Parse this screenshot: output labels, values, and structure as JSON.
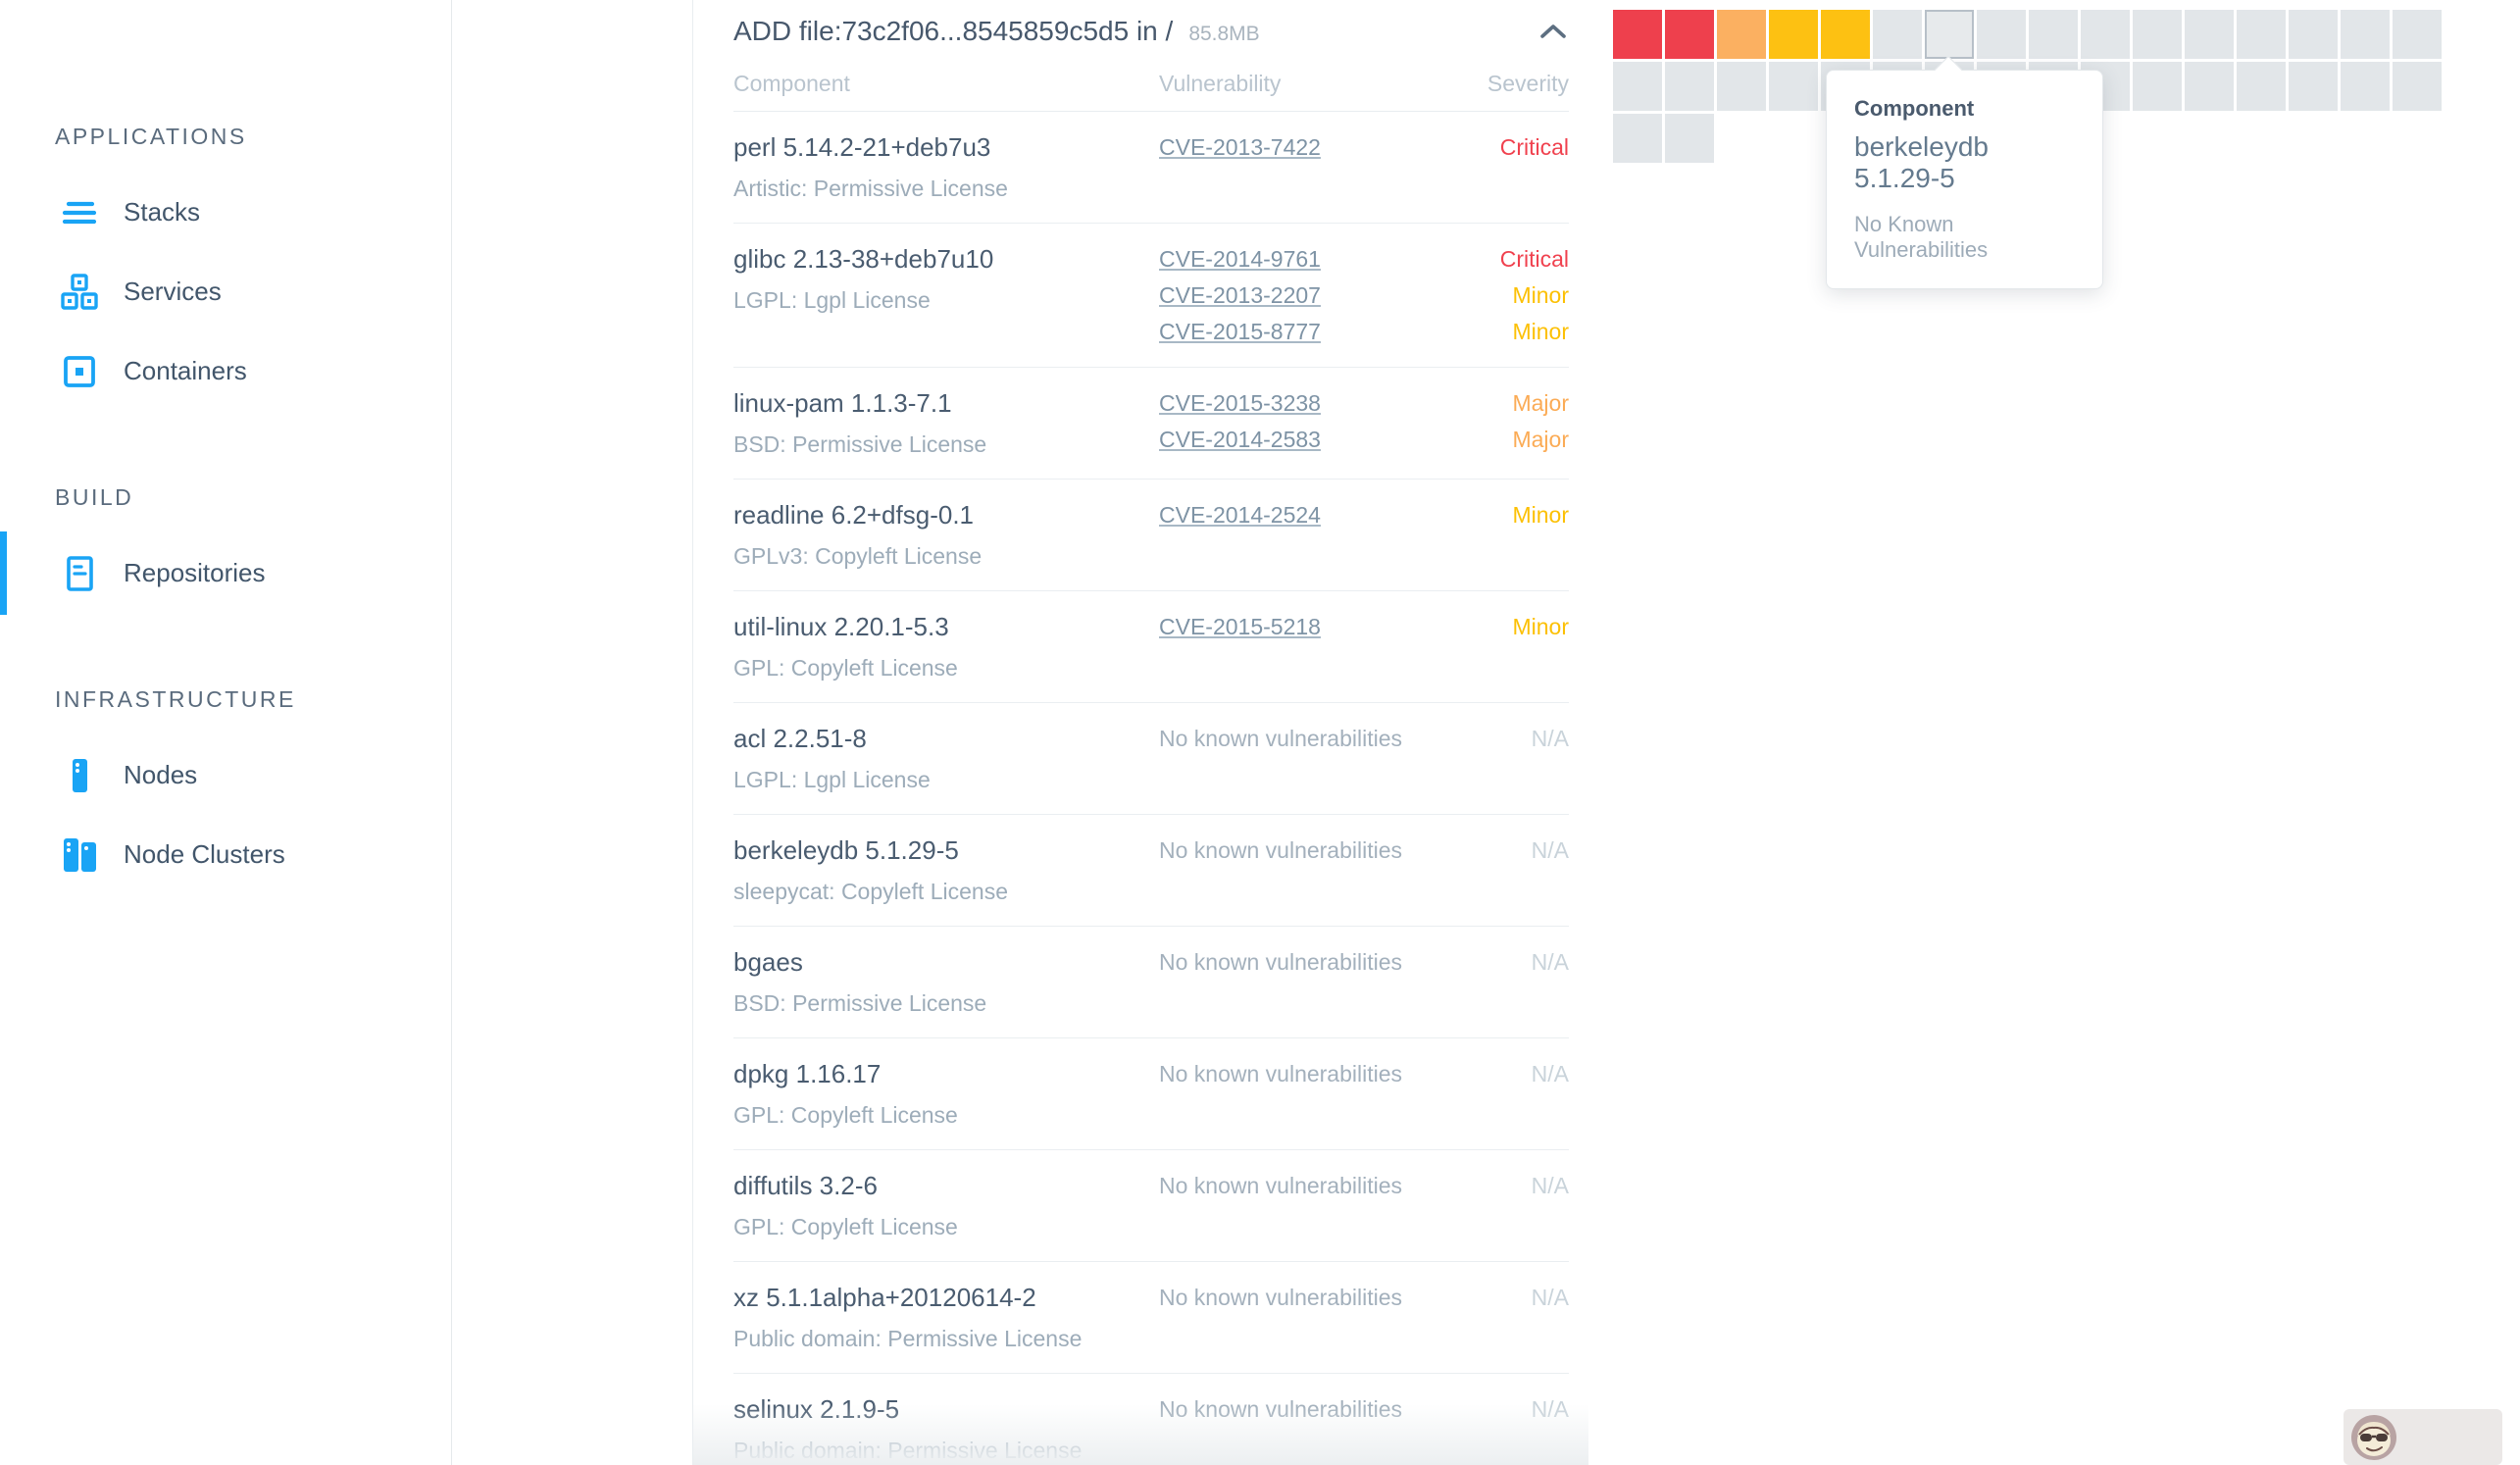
{
  "sidebar": {
    "sections": [
      {
        "label": "APPLICATIONS",
        "items": [
          {
            "label": "Stacks",
            "icon": "stacks-icon",
            "active": false
          },
          {
            "label": "Services",
            "icon": "services-icon",
            "active": false
          },
          {
            "label": "Containers",
            "icon": "containers-icon",
            "active": false
          }
        ]
      },
      {
        "label": "BUILD",
        "items": [
          {
            "label": "Repositories",
            "icon": "repositories-icon",
            "active": true
          }
        ]
      },
      {
        "label": "INFRASTRUCTURE",
        "items": [
          {
            "label": "Nodes",
            "icon": "nodes-icon",
            "active": false
          },
          {
            "label": "Node Clusters",
            "icon": "node-clusters-icon",
            "active": false
          }
        ]
      }
    ]
  },
  "panel": {
    "title": "ADD file:73c2f06...8545859c5d5 in /",
    "size": "85.8MB",
    "collapse_icon": "chevron-up-icon"
  },
  "table": {
    "columns": [
      "Component",
      "Vulnerability",
      "Severity"
    ],
    "no_vuln_text": "No known vulnerabilities",
    "na_text": "N/A",
    "rows": [
      {
        "component": "perl 5.14.2-21+deb7u3",
        "license": "Artistic: Permissive License",
        "vulns": [
          {
            "cve": "CVE-2013-7422",
            "severity": "Critical"
          }
        ]
      },
      {
        "component": "glibc 2.13-38+deb7u10",
        "license": "LGPL: Lgpl License",
        "vulns": [
          {
            "cve": "CVE-2014-9761",
            "severity": "Critical"
          },
          {
            "cve": "CVE-2013-2207",
            "severity": "Minor"
          },
          {
            "cve": "CVE-2015-8777",
            "severity": "Minor"
          }
        ]
      },
      {
        "component": "linux-pam 1.1.3-7.1",
        "license": "BSD: Permissive License",
        "vulns": [
          {
            "cve": "CVE-2015-3238",
            "severity": "Major"
          },
          {
            "cve": "CVE-2014-2583",
            "severity": "Major"
          }
        ]
      },
      {
        "component": "readline 6.2+dfsg-0.1",
        "license": "GPLv3: Copyleft License",
        "vulns": [
          {
            "cve": "CVE-2014-2524",
            "severity": "Minor"
          }
        ]
      },
      {
        "component": "util-linux 2.20.1-5.3",
        "license": "GPL: Copyleft License",
        "vulns": [
          {
            "cve": "CVE-2015-5218",
            "severity": "Minor"
          }
        ]
      },
      {
        "component": "acl 2.2.51-8",
        "license": "LGPL: Lgpl License",
        "vulns": []
      },
      {
        "component": "berkeleydb 5.1.29-5",
        "license": "sleepycat: Copyleft License",
        "vulns": []
      },
      {
        "component": "bgaes",
        "license": "BSD: Permissive License",
        "vulns": []
      },
      {
        "component": "dpkg 1.16.17",
        "license": "GPL: Copyleft License",
        "vulns": []
      },
      {
        "component": "diffutils 3.2-6",
        "license": "GPL: Copyleft License",
        "vulns": []
      },
      {
        "component": "xz 5.1.1alpha+20120614-2",
        "license": "Public domain: Permissive License",
        "vulns": []
      },
      {
        "component": "selinux 2.1.9-5",
        "license": "Public domain: Permissive License",
        "vulns": []
      }
    ]
  },
  "severity_colors": {
    "Critical": "#f0414e",
    "Major": "#fbab55",
    "Minor": "#fcc004",
    "N/A": "#c9d3da"
  },
  "heatmap": {
    "cell_colors": {
      "critical": "#ee404d",
      "major": "#fbb061",
      "minor": "#fdc112",
      "none": "#e2e6e9",
      "hovered": "#e7eaec"
    },
    "rows": [
      [
        "critical",
        "critical",
        "major",
        "minor",
        "minor",
        "none",
        "none",
        "none",
        "none",
        "none",
        "none",
        "none",
        "none",
        "none",
        "none",
        "none"
      ],
      [
        "none",
        "none",
        "none",
        "none",
        "none",
        "none",
        "none",
        "none",
        "none",
        "none",
        "none",
        "none",
        "none",
        "none",
        "none",
        "none"
      ],
      [
        "none",
        "none"
      ]
    ],
    "hovered": {
      "row": 0,
      "col": 6
    }
  },
  "tooltip": {
    "label": "Component",
    "name": "berkeleydb 5.1.29-5",
    "status": "No Known Vulnerabilities"
  },
  "accent_colors": {
    "sidebar_icon_blue": "#19a4f5",
    "active_indicator_blue": "#19a4f5"
  }
}
